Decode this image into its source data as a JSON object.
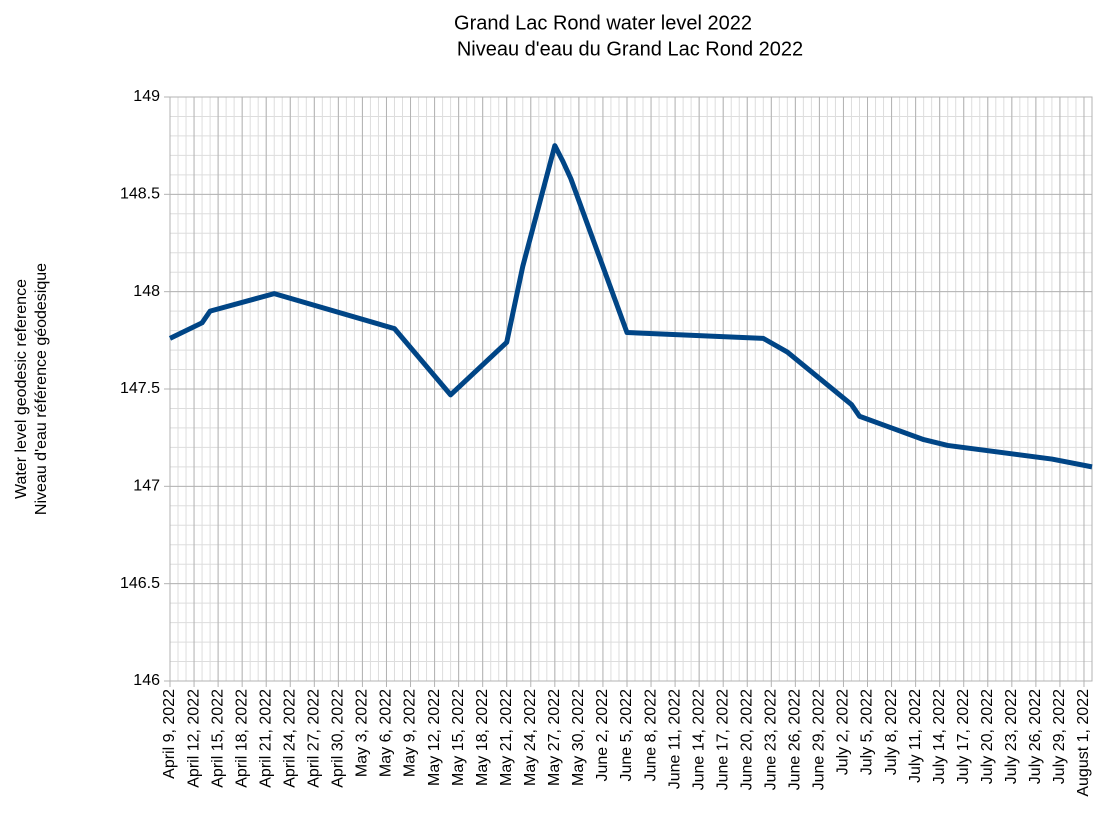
{
  "chart_data": {
    "type": "line",
    "title": "Grand Lac Rond water level 2022",
    "subtitle": "Niveau d'eau du Grand Lac Rond 2022",
    "ylabel": [
      "Water level geodesic reference",
      "Niveau d'eau référence géodesique"
    ],
    "x": [
      "2022-04-09",
      "2022-04-13",
      "2022-04-14",
      "2022-04-22",
      "2022-05-07",
      "2022-05-14",
      "2022-05-21",
      "2022-05-23",
      "2022-05-27",
      "2022-05-28",
      "2022-05-29",
      "2022-06-05",
      "2022-06-22",
      "2022-06-25",
      "2022-07-03",
      "2022-07-04",
      "2022-07-12",
      "2022-07-15",
      "2022-07-28",
      "2022-08-02"
    ],
    "values": [
      147.76,
      147.84,
      147.9,
      147.99,
      147.81,
      147.47,
      147.74,
      148.13,
      148.75,
      148.67,
      148.58,
      147.79,
      147.76,
      147.69,
      147.42,
      147.36,
      147.24,
      147.21,
      147.14,
      147.1
    ],
    "color": "#004586",
    "xlim": [
      "2022-04-09",
      "2022-08-02"
    ],
    "xticks": [
      {
        "value": "2022-04-09",
        "label": "April 9, 2022"
      },
      {
        "value": "2022-04-12",
        "label": "April 12, 2022"
      },
      {
        "value": "2022-04-15",
        "label": "April 15, 2022"
      },
      {
        "value": "2022-04-18",
        "label": "April 18, 2022"
      },
      {
        "value": "2022-04-21",
        "label": "April 21, 2022"
      },
      {
        "value": "2022-04-24",
        "label": "April 24, 2022"
      },
      {
        "value": "2022-04-27",
        "label": "April 27, 2022"
      },
      {
        "value": "2022-04-30",
        "label": "April 30, 2022"
      },
      {
        "value": "2022-05-03",
        "label": "May 3, 2022"
      },
      {
        "value": "2022-05-06",
        "label": "May 6, 2022"
      },
      {
        "value": "2022-05-09",
        "label": "May 9, 2022"
      },
      {
        "value": "2022-05-12",
        "label": "May 12, 2022"
      },
      {
        "value": "2022-05-15",
        "label": "May 15, 2022"
      },
      {
        "value": "2022-05-18",
        "label": "May 18, 2022"
      },
      {
        "value": "2022-05-21",
        "label": "May 21, 2022"
      },
      {
        "value": "2022-05-24",
        "label": "May 24, 2022"
      },
      {
        "value": "2022-05-27",
        "label": "May 27, 2022"
      },
      {
        "value": "2022-05-30",
        "label": "May 30, 2022"
      },
      {
        "value": "2022-06-02",
        "label": "June 2, 2022"
      },
      {
        "value": "2022-06-05",
        "label": "June 5, 2022"
      },
      {
        "value": "2022-06-08",
        "label": "June 8, 2022"
      },
      {
        "value": "2022-06-11",
        "label": "June 11, 2022"
      },
      {
        "value": "2022-06-14",
        "label": "June 14, 2022"
      },
      {
        "value": "2022-06-17",
        "label": "June 17, 2022"
      },
      {
        "value": "2022-06-20",
        "label": "June 20, 2022"
      },
      {
        "value": "2022-06-23",
        "label": "June 23, 2022"
      },
      {
        "value": "2022-06-26",
        "label": "June 26, 2022"
      },
      {
        "value": "2022-06-29",
        "label": "June 29, 2022"
      },
      {
        "value": "2022-07-02",
        "label": "July 2, 2022"
      },
      {
        "value": "2022-07-05",
        "label": "July 5, 2022"
      },
      {
        "value": "2022-07-08",
        "label": "July 8, 2022"
      },
      {
        "value": "2022-07-11",
        "label": "July 11, 2022"
      },
      {
        "value": "2022-07-14",
        "label": "July 14, 2022"
      },
      {
        "value": "2022-07-17",
        "label": "July 17, 2022"
      },
      {
        "value": "2022-07-20",
        "label": "July 20, 2022"
      },
      {
        "value": "2022-07-23",
        "label": "July 23, 2022"
      },
      {
        "value": "2022-07-26",
        "label": "July 26, 2022"
      },
      {
        "value": "2022-07-29",
        "label": "July 29, 2022"
      },
      {
        "value": "2022-08-01",
        "label": "August 1, 2022"
      }
    ],
    "ylim": [
      146,
      149
    ],
    "yticks": [
      146,
      146.5,
      147,
      147.5,
      148,
      148.5,
      149
    ],
    "grid": true
  }
}
